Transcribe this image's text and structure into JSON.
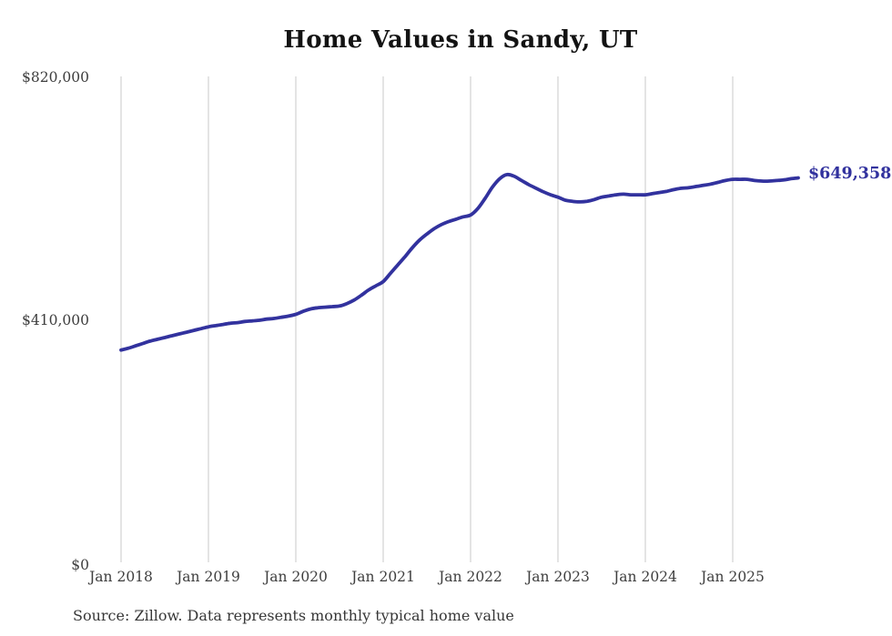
{
  "page": {
    "title": "Home Values in Sandy, UT",
    "source_note": "Source: Zillow. Data represents monthly typical home value"
  },
  "chart_data": {
    "type": "line",
    "title": "Home Values in Sandy, UT",
    "xlabel": "",
    "ylabel": "",
    "ylim": [
      0,
      820000
    ],
    "y_tick_values": [
      0,
      410000,
      820000
    ],
    "y_tick_labels": [
      "$0",
      "$410,000",
      "$820,000"
    ],
    "x_tick_labels": [
      "Jan 2018",
      "Jan 2019",
      "Jan 2020",
      "Jan 2021",
      "Jan 2022",
      "Jan 2023",
      "Jan 2024",
      "Jan 2025"
    ],
    "grid": "vertical-only",
    "legend": "none",
    "line_color": "#32329e",
    "gridline_color": "#c9c9c9",
    "end_label": "$649,358",
    "end_value": 649358,
    "source": "Source: Zillow. Data represents monthly typical home value",
    "series": [
      {
        "name": "Typical home value",
        "frequency": "monthly",
        "start_month": "2018-01",
        "end_month": "2025-10",
        "months": [
          "2018-01",
          "2018-02",
          "2018-03",
          "2018-04",
          "2018-05",
          "2018-06",
          "2018-07",
          "2018-08",
          "2018-09",
          "2018-10",
          "2018-11",
          "2018-12",
          "2019-01",
          "2019-02",
          "2019-03",
          "2019-04",
          "2019-05",
          "2019-06",
          "2019-07",
          "2019-08",
          "2019-09",
          "2019-10",
          "2019-11",
          "2019-12",
          "2020-01",
          "2020-02",
          "2020-03",
          "2020-04",
          "2020-05",
          "2020-06",
          "2020-07",
          "2020-08",
          "2020-09",
          "2020-10",
          "2020-11",
          "2020-12",
          "2021-01",
          "2021-02",
          "2021-03",
          "2021-04",
          "2021-05",
          "2021-06",
          "2021-07",
          "2021-08",
          "2021-09",
          "2021-10",
          "2021-11",
          "2021-12",
          "2022-01",
          "2022-02",
          "2022-03",
          "2022-04",
          "2022-05",
          "2022-06",
          "2022-07",
          "2022-08",
          "2022-09",
          "2022-10",
          "2022-11",
          "2022-12",
          "2023-01",
          "2023-02",
          "2023-03",
          "2023-04",
          "2023-05",
          "2023-06",
          "2023-07",
          "2023-08",
          "2023-09",
          "2023-10",
          "2023-11",
          "2023-12",
          "2024-01",
          "2024-02",
          "2024-03",
          "2024-04",
          "2024-05",
          "2024-06",
          "2024-07",
          "2024-08",
          "2024-09",
          "2024-10",
          "2024-11",
          "2024-12",
          "2025-01",
          "2025-02",
          "2025-03",
          "2025-04",
          "2025-05",
          "2025-06",
          "2025-07",
          "2025-08",
          "2025-09",
          "2025-10"
        ],
        "values": [
          360000,
          363000,
          367000,
          371000,
          375000,
          378000,
          381000,
          384000,
          387000,
          390000,
          393000,
          396000,
          399000,
          401000,
          403000,
          405000,
          406000,
          408000,
          409000,
          410000,
          412000,
          413000,
          415000,
          417000,
          420000,
          425000,
          429000,
          431000,
          432000,
          433000,
          434000,
          438000,
          444000,
          452000,
          461000,
          468000,
          475000,
          489000,
          503000,
          517000,
          532000,
          545000,
          555000,
          564000,
          571000,
          576000,
          580000,
          584000,
          587000,
          598000,
          615000,
          634000,
          648000,
          655000,
          652000,
          645000,
          638000,
          632000,
          626000,
          621000,
          617000,
          612000,
          610000,
          609000,
          610000,
          613000,
          617000,
          619000,
          621000,
          622000,
          621000,
          621000,
          621000,
          623000,
          625000,
          627000,
          630000,
          632000,
          633000,
          635000,
          637000,
          639000,
          642000,
          645000,
          647000,
          647000,
          647000,
          645000,
          644000,
          644000,
          645000,
          646000,
          648000,
          649358
        ]
      }
    ]
  }
}
